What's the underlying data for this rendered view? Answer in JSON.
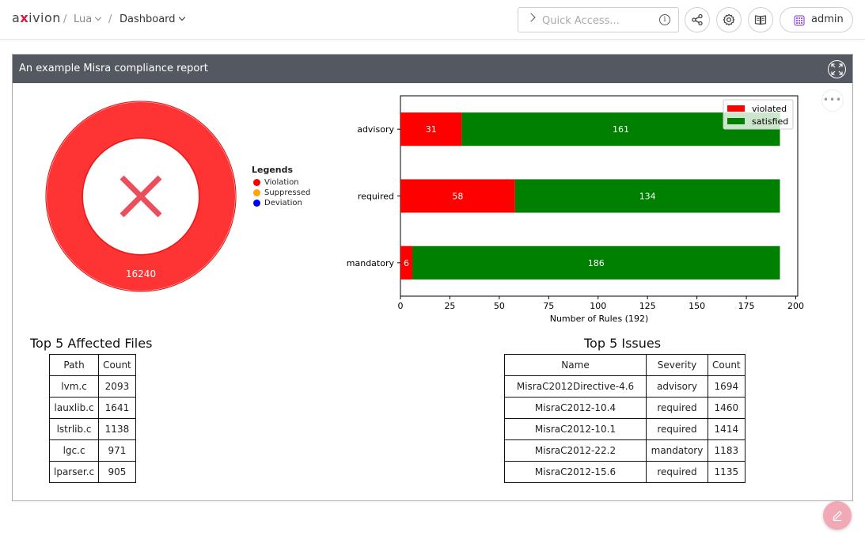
{
  "topbar": {
    "logo": {
      "pre": "a",
      "x": "x",
      "post": "ivion"
    },
    "breadcrumb": [
      {
        "label": "Lua",
        "style": "light"
      },
      {
        "label": "Dashboard",
        "style": "dark"
      }
    ],
    "separator": "/",
    "quick_access": {
      "placeholder": "Quick Access...",
      "value": ""
    },
    "info_glyph": "i",
    "icons": [
      "share-icon",
      "gear-icon",
      "book-icon"
    ],
    "user": {
      "name": "admin"
    }
  },
  "panel": {
    "title": "An example Misra compliance report",
    "more_glyph": "•••"
  },
  "donut": {
    "total": "16240",
    "status_icon": "cross-icon",
    "color": "#fe3333",
    "legend_title": "Legends",
    "legend": [
      {
        "label": "Violation",
        "color": "#ff0000"
      },
      {
        "label": "Suppressed",
        "color": "#ffa500"
      },
      {
        "label": "Deviation",
        "color": "#0000ff"
      }
    ]
  },
  "chart_data": {
    "type": "bar",
    "orientation": "horizontal",
    "stacked": true,
    "categories": [
      "advisory",
      "required",
      "mandatory"
    ],
    "series": [
      {
        "name": "violated",
        "values": [
          31,
          58,
          6
        ],
        "color": "#ff0000"
      },
      {
        "name": "satisfied",
        "values": [
          161,
          134,
          186
        ],
        "color": "#008000"
      }
    ],
    "xlabel": "Number of Rules (192)",
    "xlim": [
      0,
      201
    ],
    "xticks": [
      0,
      25,
      50,
      75,
      100,
      125,
      150,
      175,
      200
    ],
    "legend_position": "top-right",
    "grid": false
  },
  "files_table": {
    "title": "Top 5 Affected Files",
    "headers": [
      "Path",
      "Count"
    ],
    "rows": [
      [
        "lvm.c",
        "2093"
      ],
      [
        "lauxlib.c",
        "1641"
      ],
      [
        "lstrlib.c",
        "1138"
      ],
      [
        "lgc.c",
        "971"
      ],
      [
        "lparser.c",
        "905"
      ]
    ]
  },
  "issues_table": {
    "title": "Top 5 Issues",
    "headers": [
      "Name",
      "Severity",
      "Count"
    ],
    "rows": [
      [
        "MisraC2012Directive-4.6",
        "advisory",
        "1694"
      ],
      [
        "MisraC2012-10.4",
        "required",
        "1460"
      ],
      [
        "MisraC2012-10.1",
        "required",
        "1414"
      ],
      [
        "MisraC2012-22.2",
        "mandatory",
        "1183"
      ],
      [
        "MisraC2012-15.6",
        "required",
        "1135"
      ]
    ]
  },
  "fab": {
    "icon": "pencil-icon"
  }
}
